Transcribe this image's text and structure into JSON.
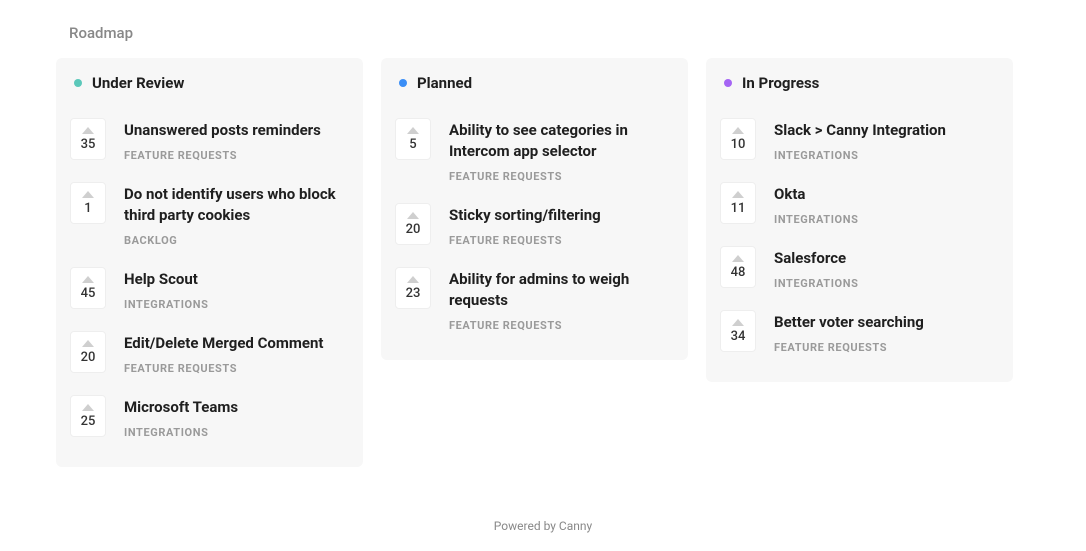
{
  "page_title": "Roadmap",
  "footer_text": "Powered by Canny",
  "columns": [
    {
      "title": "Under Review",
      "dot_color": "#5bc8ba",
      "cards": [
        {
          "votes": "35",
          "title": "Unanswered posts reminders",
          "category": "FEATURE REQUESTS"
        },
        {
          "votes": "1",
          "title": "Do not identify users who block third party cookies",
          "category": "BACKLOG"
        },
        {
          "votes": "45",
          "title": "Help Scout",
          "category": "INTEGRATIONS"
        },
        {
          "votes": "20",
          "title": "Edit/Delete Merged Comment",
          "category": "FEATURE REQUESTS"
        },
        {
          "votes": "25",
          "title": "Microsoft Teams",
          "category": "INTEGRATIONS"
        }
      ]
    },
    {
      "title": "Planned",
      "dot_color": "#3a8ef6",
      "cards": [
        {
          "votes": "5",
          "title": "Ability to see categories in Intercom app selector",
          "category": "FEATURE REQUESTS"
        },
        {
          "votes": "20",
          "title": "Sticky sorting/filtering",
          "category": "FEATURE REQUESTS"
        },
        {
          "votes": "23",
          "title": "Ability for admins to weigh requests",
          "category": "FEATURE REQUESTS"
        }
      ]
    },
    {
      "title": "In Progress",
      "dot_color": "#a565f4",
      "cards": [
        {
          "votes": "10",
          "title": "Slack > Canny Integration",
          "category": "INTEGRATIONS"
        },
        {
          "votes": "11",
          "title": "Okta",
          "category": "INTEGRATIONS"
        },
        {
          "votes": "48",
          "title": "Salesforce",
          "category": "INTEGRATIONS"
        },
        {
          "votes": "34",
          "title": "Better voter searching",
          "category": "FEATURE REQUESTS"
        }
      ]
    }
  ]
}
